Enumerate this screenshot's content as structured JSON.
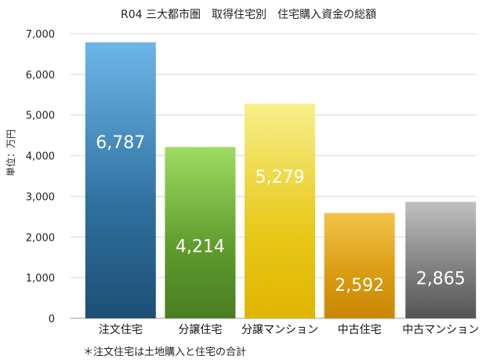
{
  "chart_data": {
    "type": "bar",
    "title": "R04 三大都市圏　取得住宅別　住宅購入資金の総額",
    "ylabel": "単位：万円",
    "xlabel": "",
    "categories": [
      "注文住宅",
      "分譲住宅",
      "分譲マンション",
      "中古住宅",
      "中古マンション"
    ],
    "values": [
      6787,
      4214,
      5279,
      2592,
      2865
    ],
    "value_labels": [
      "6,787",
      "4,214",
      "5,279",
      "2,592",
      "2,865"
    ],
    "ylim": [
      0,
      7000
    ],
    "yticks": [
      0,
      1000,
      2000,
      3000,
      4000,
      5000,
      6000,
      7000
    ],
    "ytick_labels": [
      "0",
      "1,000",
      "2,000",
      "3,000",
      "4,000",
      "5,000",
      "6,000",
      "7,000"
    ],
    "grid": true,
    "bar_colors": [
      [
        "#6cb7e8",
        "#2f6f9e",
        "#1d4f74"
      ],
      [
        "#9fdc63",
        "#5e9a2c",
        "#4b7e22"
      ],
      [
        "#f7ef8a",
        "#e8c81a",
        "#e0b500"
      ],
      [
        "#f3c34a",
        "#d99a10",
        "#c98705"
      ],
      [
        "#c0c0c0",
        "#7d7d7d",
        "#555555"
      ]
    ],
    "note": "＊注文住宅は土地購入と住宅の合計"
  }
}
